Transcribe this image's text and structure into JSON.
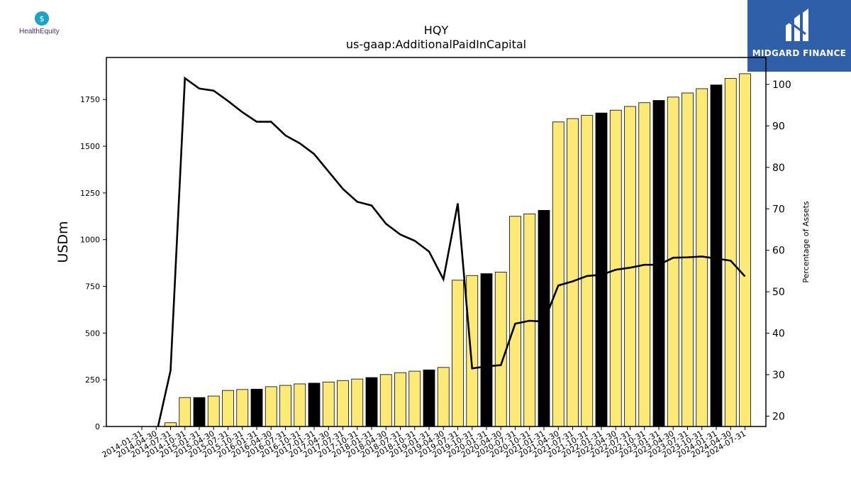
{
  "company_logo": {
    "text": "HealthEquity",
    "accent": "#19a3c9",
    "text_color": "#4a2a7a"
  },
  "brand_logo": {
    "text": "MIDGARD FINANCE",
    "background": "#2f5fa8"
  },
  "chart_data": {
    "type": "bar",
    "title": "HQY",
    "subtitle": "us-gaap:AdditionalPaidInCapital",
    "ylabel": "USDm",
    "y2label": "Percentage of Assets",
    "ylim": [
      0,
      1975
    ],
    "y2lim": [
      17.5,
      106.5
    ],
    "yticks": [
      0,
      250,
      500,
      750,
      1000,
      1250,
      1500,
      1750
    ],
    "y2ticks": [
      20,
      30,
      40,
      50,
      60,
      70,
      80,
      90,
      100
    ],
    "categories": [
      "2014-01-31",
      "2014-04-30",
      "2014-07-31",
      "2014-10-31",
      "2015-01-31",
      "2015-04-30",
      "2015-07-31",
      "2015-10-31",
      "2016-01-31",
      "2016-04-30",
      "2016-07-31",
      "2016-10-31",
      "2017-01-31",
      "2017-04-30",
      "2017-07-31",
      "2017-10-31",
      "2018-01-31",
      "2018-04-30",
      "2018-07-31",
      "2018-10-31",
      "2019-01-31",
      "2019-04-30",
      "2019-07-31",
      "2019-10-31",
      "2020-01-31",
      "2020-04-30",
      "2020-07-31",
      "2020-10-31",
      "2021-01-31",
      "2021-04-30",
      "2021-07-31",
      "2021-10-31",
      "2022-01-31",
      "2022-04-30",
      "2022-07-31",
      "2022-10-31",
      "2023-01-31",
      "2023-04-30",
      "2023-07-31",
      "2023-10-31",
      "2024-01-31",
      "2024-04-30",
      "2024-07-31"
    ],
    "series": [
      {
        "kind": "bar",
        "values": [
          0,
          0,
          20,
          155,
          155,
          163,
          193,
          198,
          200,
          213,
          220,
          228,
          232,
          238,
          246,
          254,
          262,
          278,
          288,
          296,
          303,
          316,
          783,
          808,
          818,
          826,
          1125,
          1138,
          1157,
          1630,
          1648,
          1665,
          1678,
          1693,
          1713,
          1733,
          1745,
          1763,
          1785,
          1808,
          1828,
          1863,
          1888
        ],
        "highlight": [
          false,
          false,
          false,
          false,
          true,
          false,
          false,
          false,
          true,
          false,
          false,
          false,
          true,
          false,
          false,
          false,
          true,
          false,
          false,
          false,
          true,
          false,
          false,
          false,
          true,
          false,
          false,
          false,
          true,
          false,
          false,
          false,
          true,
          false,
          false,
          false,
          true,
          false,
          false,
          false,
          true,
          false,
          false
        ],
        "color": "#fdea76",
        "highlight_color": "#000000"
      },
      {
        "kind": "line",
        "axis": "right",
        "values": [
          null,
          15.5,
          31,
          101.5,
          99,
          98.5,
          96,
          93.3,
          91,
          91,
          87.7,
          85.8,
          83.2,
          79,
          74.8,
          71.7,
          70.8,
          66.4,
          63.8,
          62.3,
          59.7,
          53,
          71.3,
          31.5,
          32,
          32.3,
          42.3,
          43,
          42.8,
          51.5,
          52.5,
          53.8,
          54.1,
          55.3,
          55.8,
          56.5,
          56.5,
          58.2,
          58.3,
          58.5,
          58,
          57.5,
          53.7
        ],
        "color": "#000000"
      }
    ]
  }
}
